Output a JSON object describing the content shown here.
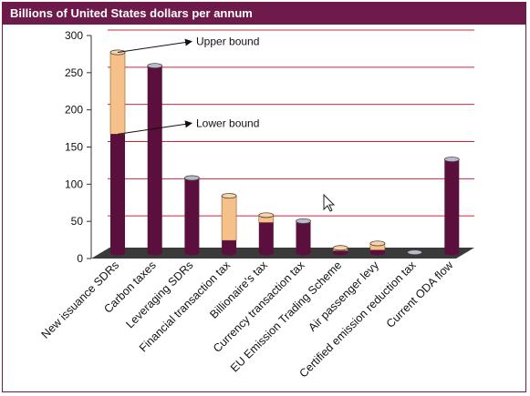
{
  "chart_data": {
    "type": "bar",
    "title": "Billions of United States dollars per annum",
    "xlabel": "",
    "ylabel": "",
    "ylim": [
      0,
      300
    ],
    "yticks": [
      0,
      50,
      100,
      150,
      200,
      250,
      300
    ],
    "grid": true,
    "categories": [
      "New issuance SDRs",
      "Carbon taxes",
      "Leveraging SDRs",
      "Financial transaction tax",
      "Billionaire's tax",
      "Currency transaction tax",
      "EU Emission Trading Scheme",
      "Air passenger levy",
      "Certified emission reduction tax",
      "Current ODA flow"
    ],
    "series": [
      {
        "name": "Lower bound",
        "values": [
          160,
          252,
          101,
          17,
          41,
          43,
          3,
          4,
          1,
          126
        ]
      },
      {
        "name": "Upper bound",
        "values": [
          270,
          252,
          101,
          77,
          51,
          43,
          7,
          13,
          1,
          126
        ]
      }
    ],
    "annotations": [
      {
        "text": "Upper bound",
        "points_to": "New issuance SDRs",
        "value": 270
      },
      {
        "text": "Lower bound",
        "points_to": "New issuance SDRs",
        "value": 160
      }
    ],
    "colors": {
      "lower": "#5a0f3c",
      "upper": "#f5c08a",
      "floor": "#3a3a3a",
      "grid": "#d0243a",
      "frame": "#6e1a4a"
    }
  }
}
